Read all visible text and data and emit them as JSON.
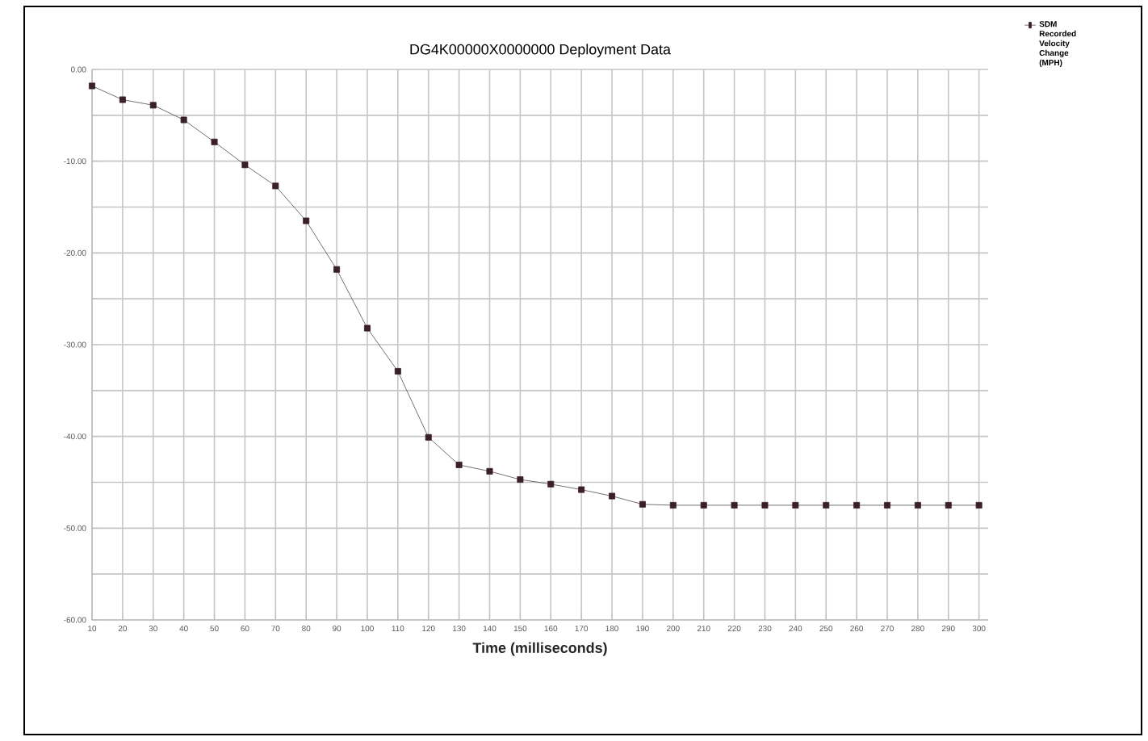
{
  "chart_data": {
    "type": "line",
    "title": "DG4K00000X0000000  Deployment Data",
    "xlabel": "Time (milliseconds)",
    "categories": [
      "10",
      "20",
      "30",
      "40",
      "50",
      "60",
      "70",
      "80",
      "90",
      "100",
      "110",
      "120",
      "130",
      "140",
      "150",
      "160",
      "170",
      "180",
      "190",
      "200",
      "210",
      "220",
      "230",
      "240",
      "250",
      "260",
      "270",
      "280",
      "290",
      "300"
    ],
    "series": [
      {
        "name": "SDM Recorded Velocity Change (MPH)",
        "color": "#3a1f2a",
        "values": [
          -1.8,
          -3.3,
          -3.9,
          -5.5,
          -7.9,
          -10.4,
          -12.7,
          -16.5,
          -21.8,
          -28.2,
          -32.9,
          -40.1,
          -43.1,
          -43.8,
          -44.7,
          -45.2,
          -45.8,
          -46.5,
          -47.4,
          -47.5,
          -47.5,
          -47.5,
          -47.5,
          -47.5,
          -47.5,
          -47.5,
          -47.5,
          -47.5,
          -47.5,
          -47.5
        ]
      }
    ],
    "ylim": [
      -60,
      0
    ],
    "yticks": [
      {
        "value": 0,
        "label": "0.00"
      },
      {
        "value": -10,
        "label": "-10.00"
      },
      {
        "value": -20,
        "label": "-20.00"
      },
      {
        "value": -30,
        "label": "-30.00"
      },
      {
        "value": -40,
        "label": "-40.00"
      },
      {
        "value": -50,
        "label": "-50.00"
      },
      {
        "value": -60,
        "label": "-60.00"
      }
    ],
    "grid": true,
    "legend": "right",
    "marker": "square",
    "line_style": "solid"
  }
}
